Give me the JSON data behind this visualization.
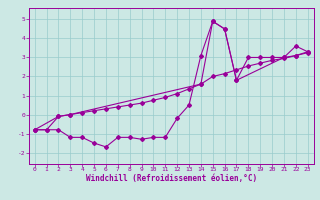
{
  "xlabel": "Windchill (Refroidissement éolien,°C)",
  "bg_color": "#cce8e4",
  "line_color": "#990099",
  "grid_color": "#99cccc",
  "xlim": [
    -0.5,
    23.5
  ],
  "ylim": [
    -2.6,
    5.6
  ],
  "yticks": [
    -2,
    -1,
    0,
    1,
    2,
    3,
    4,
    5
  ],
  "xticks": [
    0,
    1,
    2,
    3,
    4,
    5,
    6,
    7,
    8,
    9,
    10,
    11,
    12,
    13,
    14,
    15,
    16,
    17,
    18,
    19,
    20,
    21,
    22,
    23
  ],
  "series1_x": [
    0,
    1,
    2,
    3,
    4,
    5,
    6,
    7,
    8,
    9,
    10,
    11,
    12,
    13,
    14,
    15,
    16,
    17,
    18,
    19,
    20,
    21,
    22,
    23
  ],
  "series1_y": [
    -0.8,
    -0.8,
    -0.8,
    -1.2,
    -1.2,
    -1.5,
    -1.7,
    -1.2,
    -1.2,
    -1.3,
    -1.2,
    -1.2,
    -0.2,
    0.5,
    3.1,
    4.9,
    4.5,
    1.8,
    3.0,
    3.0,
    3.0,
    3.0,
    3.1,
    3.3
  ],
  "series2_x": [
    0,
    1,
    2,
    3,
    4,
    5,
    6,
    7,
    8,
    9,
    10,
    11,
    12,
    13,
    14,
    15,
    16,
    17,
    18,
    19,
    20,
    21,
    22,
    23
  ],
  "series2_y": [
    -0.8,
    -0.8,
    -0.1,
    0.0,
    0.1,
    0.2,
    0.3,
    0.4,
    0.5,
    0.6,
    0.75,
    0.9,
    1.1,
    1.35,
    1.6,
    2.0,
    2.15,
    2.35,
    2.55,
    2.7,
    2.85,
    2.95,
    3.1,
    3.25
  ],
  "series3_x": [
    0,
    2,
    3,
    14,
    15,
    16,
    17,
    21,
    22,
    23
  ],
  "series3_y": [
    -0.8,
    -0.1,
    0.0,
    1.6,
    4.9,
    4.5,
    1.8,
    3.0,
    3.6,
    3.3
  ]
}
